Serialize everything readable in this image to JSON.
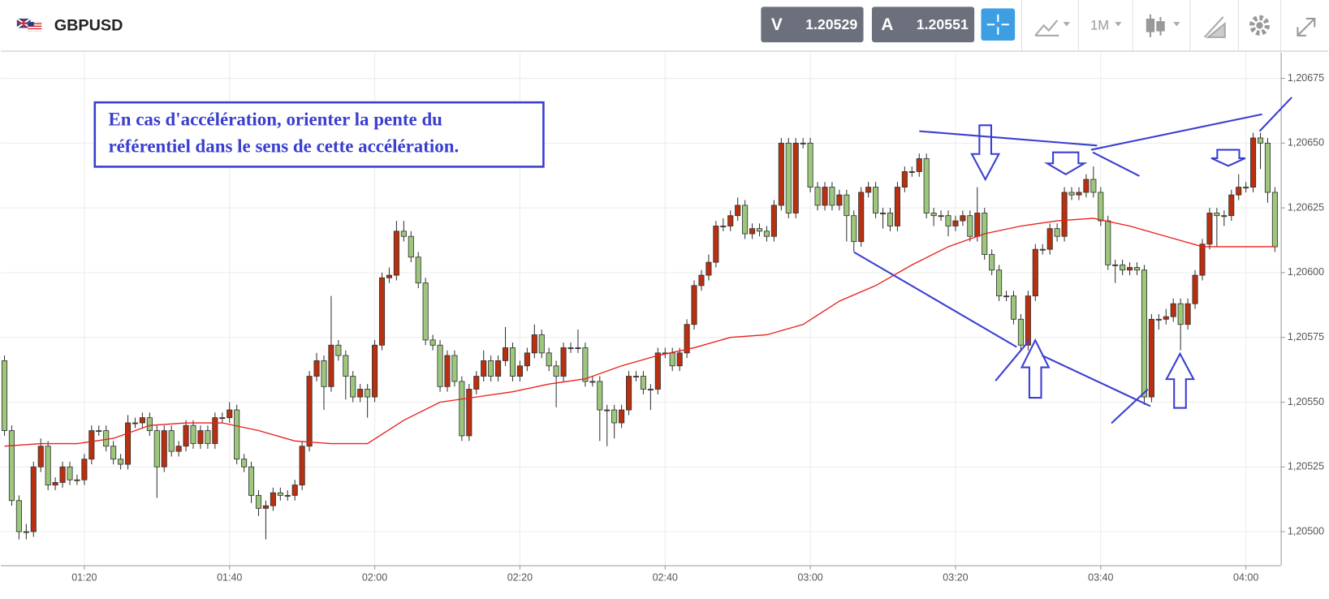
{
  "header": {
    "symbol": "GBPUSD",
    "bid_label": "V",
    "bid": "1.20529",
    "ask_label": "A",
    "ask": "1.20551",
    "timeframe": "1M"
  },
  "chart_data": {
    "type": "candlestick",
    "annotation": [
      "En cas d'accélération, orienter la pente du",
      "référentiel dans le sens de cette accélération."
    ],
    "up_color": "#b8300f",
    "down_color": "#9cc77c",
    "grid": true,
    "ylim": [
      1.20487,
      1.20685
    ],
    "yticks": [
      {
        "value": 1.205,
        "label": "1,20500"
      },
      {
        "value": 1.20525,
        "label": "1,20525"
      },
      {
        "value": 1.2055,
        "label": "1,20550"
      },
      {
        "value": 1.20575,
        "label": "1,20575"
      },
      {
        "value": 1.206,
        "label": "1,20600"
      },
      {
        "value": 1.20625,
        "label": "1,20625"
      },
      {
        "value": 1.2065,
        "label": "1,20650"
      },
      {
        "value": 1.20675,
        "label": "1,20675"
      }
    ],
    "xlim": [
      -0.5,
      175.8
    ],
    "xticks": [
      {
        "value": 11,
        "label": "01:20"
      },
      {
        "value": 31,
        "label": "01:40"
      },
      {
        "value": 51,
        "label": "02:00"
      },
      {
        "value": 71,
        "label": "02:20"
      },
      {
        "value": 91,
        "label": "02:40"
      },
      {
        "value": 111,
        "label": "03:00"
      },
      {
        "value": 131,
        "label": "03:20"
      },
      {
        "value": 151,
        "label": "03:40"
      },
      {
        "value": 171,
        "label": "04:00"
      }
    ],
    "candles": [
      [
        1.20566,
        1.20568,
        1.20537,
        1.20539
      ],
      [
        1.20539,
        1.20541,
        1.2051,
        1.20512
      ],
      [
        1.20512,
        1.20514,
        1.20497,
        1.205
      ],
      [
        1.205,
        1.20503,
        1.20497,
        1.205
      ],
      [
        1.205,
        1.20527,
        1.20498,
        1.20525
      ],
      [
        1.20525,
        1.20536,
        1.20523,
        1.20533
      ],
      [
        1.20533,
        1.20535,
        1.20516,
        1.20518
      ],
      [
        1.20518,
        1.20521,
        1.20516,
        1.20519
      ],
      [
        1.20519,
        1.20527,
        1.20517,
        1.20525
      ],
      [
        1.20525,
        1.20527,
        1.20518,
        1.2052
      ],
      [
        1.2052,
        1.20522,
        1.20518,
        1.2052
      ],
      [
        1.2052,
        1.2053,
        1.20518,
        1.20528
      ],
      [
        1.20528,
        1.20541,
        1.20526,
        1.20539
      ],
      [
        1.20539,
        1.20541,
        1.20537,
        1.20539
      ],
      [
        1.20539,
        1.20541,
        1.20531,
        1.20533
      ],
      [
        1.20533,
        1.20535,
        1.20526,
        1.20528
      ],
      [
        1.20528,
        1.2053,
        1.20524,
        1.20526
      ],
      [
        1.20526,
        1.20545,
        1.20524,
        1.20542
      ],
      [
        1.20542,
        1.20544,
        1.2054,
        1.20542
      ],
      [
        1.20542,
        1.20546,
        1.2054,
        1.20544
      ],
      [
        1.20544,
        1.20546,
        1.20537,
        1.20539
      ],
      [
        1.20539,
        1.20541,
        1.20513,
        1.20525
      ],
      [
        1.20525,
        1.20541,
        1.20523,
        1.20539
      ],
      [
        1.20539,
        1.20541,
        1.20529,
        1.20531
      ],
      [
        1.20531,
        1.20535,
        1.20529,
        1.20533
      ],
      [
        1.20533,
        1.20543,
        1.20531,
        1.20541
      ],
      [
        1.20541,
        1.20543,
        1.20532,
        1.20534
      ],
      [
        1.20534,
        1.20541,
        1.20532,
        1.20539
      ],
      [
        1.20539,
        1.20541,
        1.20532,
        1.20534
      ],
      [
        1.20534,
        1.20546,
        1.20532,
        1.20544
      ],
      [
        1.20544,
        1.20546,
        1.20542,
        1.20544
      ],
      [
        1.20544,
        1.2055,
        1.20542,
        1.20547
      ],
      [
        1.20547,
        1.20549,
        1.20526,
        1.20528
      ],
      [
        1.20528,
        1.2053,
        1.20523,
        1.20525
      ],
      [
        1.20525,
        1.20527,
        1.20511,
        1.20514
      ],
      [
        1.20514,
        1.20516,
        1.20506,
        1.20509
      ],
      [
        1.20509,
        1.20512,
        1.20497,
        1.2051
      ],
      [
        1.2051,
        1.20517,
        1.20508,
        1.20515
      ],
      [
        1.20515,
        1.20517,
        1.20512,
        1.20514
      ],
      [
        1.20514,
        1.20516,
        1.20512,
        1.20514
      ],
      [
        1.20514,
        1.2052,
        1.20512,
        1.20518
      ],
      [
        1.20518,
        1.20535,
        1.20516,
        1.20533
      ],
      [
        1.20533,
        1.20562,
        1.20531,
        1.2056
      ],
      [
        1.2056,
        1.20569,
        1.20558,
        1.20566
      ],
      [
        1.20566,
        1.20568,
        1.20547,
        1.20556
      ],
      [
        1.20556,
        1.20591,
        1.20554,
        1.20572
      ],
      [
        1.20572,
        1.20574,
        1.20566,
        1.20568
      ],
      [
        1.20568,
        1.2057,
        1.20551,
        1.2056
      ],
      [
        1.2056,
        1.20562,
        1.2055,
        1.20552
      ],
      [
        1.20552,
        1.20557,
        1.2055,
        1.20555
      ],
      [
        1.20555,
        1.20557,
        1.20544,
        1.20552
      ],
      [
        1.20552,
        1.20574,
        1.2055,
        1.20572
      ],
      [
        1.20572,
        1.206,
        1.2057,
        1.20598
      ],
      [
        1.20598,
        1.20602,
        1.20596,
        1.20599
      ],
      [
        1.20599,
        1.2062,
        1.20597,
        1.20616
      ],
      [
        1.20616,
        1.2062,
        1.20612,
        1.20614
      ],
      [
        1.20614,
        1.20616,
        1.20604,
        1.20606
      ],
      [
        1.20606,
        1.20608,
        1.20594,
        1.20596
      ],
      [
        1.20596,
        1.20598,
        1.20572,
        1.20574
      ],
      [
        1.20574,
        1.20576,
        1.2057,
        1.20572
      ],
      [
        1.20572,
        1.20574,
        1.20554,
        1.20556
      ],
      [
        1.20556,
        1.2057,
        1.20554,
        1.20568
      ],
      [
        1.20568,
        1.2057,
        1.20556,
        1.20558
      ],
      [
        1.20558,
        1.2056,
        1.20535,
        1.20537
      ],
      [
        1.20537,
        1.20557,
        1.20535,
        1.20555
      ],
      [
        1.20555,
        1.20562,
        1.20553,
        1.2056
      ],
      [
        1.2056,
        1.2057,
        1.20558,
        1.20566
      ],
      [
        1.20566,
        1.20568,
        1.20558,
        1.2056
      ],
      [
        1.2056,
        1.20568,
        1.20558,
        1.20566
      ],
      [
        1.20566,
        1.20579,
        1.20564,
        1.20571
      ],
      [
        1.20571,
        1.20573,
        1.20558,
        1.2056
      ],
      [
        1.2056,
        1.20566,
        1.20558,
        1.20564
      ],
      [
        1.20564,
        1.20571,
        1.20562,
        1.20569
      ],
      [
        1.20569,
        1.2058,
        1.20567,
        1.20576
      ],
      [
        1.20576,
        1.20578,
        1.20567,
        1.20569
      ],
      [
        1.20569,
        1.20571,
        1.20562,
        1.20564
      ],
      [
        1.20564,
        1.20566,
        1.20548,
        1.2056
      ],
      [
        1.2056,
        1.20573,
        1.20558,
        1.20571
      ],
      [
        1.20571,
        1.20573,
        1.20569,
        1.20571
      ],
      [
        1.20571,
        1.20578,
        1.20569,
        1.20571
      ],
      [
        1.20571,
        1.20573,
        1.20556,
        1.20558
      ],
      [
        1.20558,
        1.2056,
        1.20556,
        1.20558
      ],
      [
        1.20558,
        1.2056,
        1.20535,
        1.20547
      ],
      [
        1.20547,
        1.20549,
        1.20533,
        1.20547
      ],
      [
        1.20547,
        1.20549,
        1.20536,
        1.20542
      ],
      [
        1.20542,
        1.20549,
        1.2054,
        1.20547
      ],
      [
        1.20547,
        1.20562,
        1.20545,
        1.2056
      ],
      [
        1.2056,
        1.20562,
        1.20558,
        1.2056
      ],
      [
        1.2056,
        1.20562,
        1.20553,
        1.20555
      ],
      [
        1.20555,
        1.20557,
        1.20547,
        1.20555
      ],
      [
        1.20555,
        1.20571,
        1.20553,
        1.20569
      ],
      [
        1.20569,
        1.20571,
        1.20567,
        1.20569
      ],
      [
        1.20569,
        1.20571,
        1.20562,
        1.20564
      ],
      [
        1.20564,
        1.20571,
        1.20562,
        1.20569
      ],
      [
        1.20569,
        1.20582,
        1.20567,
        1.2058
      ],
      [
        1.2058,
        1.20597,
        1.20578,
        1.20595
      ],
      [
        1.20595,
        1.20601,
        1.20593,
        1.20599
      ],
      [
        1.20599,
        1.20607,
        1.20597,
        1.20604
      ],
      [
        1.20604,
        1.2062,
        1.20602,
        1.20618
      ],
      [
        1.20618,
        1.20621,
        1.20616,
        1.20618
      ],
      [
        1.20618,
        1.20624,
        1.20616,
        1.20622
      ],
      [
        1.20622,
        1.20629,
        1.2062,
        1.20626
      ],
      [
        1.20626,
        1.20628,
        1.20613,
        1.20615
      ],
      [
        1.20615,
        1.20619,
        1.20613,
        1.20617
      ],
      [
        1.20617,
        1.20619,
        1.20614,
        1.20616
      ],
      [
        1.20616,
        1.20618,
        1.20612,
        1.20614
      ],
      [
        1.20614,
        1.20628,
        1.20612,
        1.20626
      ],
      [
        1.20626,
        1.20652,
        1.20624,
        1.2065
      ],
      [
        1.2065,
        1.20652,
        1.20621,
        1.20623
      ],
      [
        1.20623,
        1.20652,
        1.20621,
        1.2065
      ],
      [
        1.2065,
        1.20652,
        1.20648,
        1.2065
      ],
      [
        1.2065,
        1.20652,
        1.20631,
        1.20633
      ],
      [
        1.20633,
        1.20635,
        1.20624,
        1.20626
      ],
      [
        1.20626,
        1.20635,
        1.20624,
        1.20633
      ],
      [
        1.20633,
        1.20635,
        1.20624,
        1.20626
      ],
      [
        1.20626,
        1.20632,
        1.20624,
        1.2063
      ],
      [
        1.2063,
        1.20632,
        1.20612,
        1.20622
      ],
      [
        1.20622,
        1.20624,
        1.20608,
        1.20612
      ],
      [
        1.20612,
        1.20633,
        1.2061,
        1.20631
      ],
      [
        1.20631,
        1.20635,
        1.20629,
        1.20633
      ],
      [
        1.20633,
        1.20635,
        1.20621,
        1.20623
      ],
      [
        1.20623,
        1.20625,
        1.20617,
        1.20623
      ],
      [
        1.20623,
        1.20625,
        1.20616,
        1.20618
      ],
      [
        1.20618,
        1.20635,
        1.20616,
        1.20633
      ],
      [
        1.20633,
        1.20641,
        1.20631,
        1.20639
      ],
      [
        1.20639,
        1.20641,
        1.20637,
        1.20639
      ],
      [
        1.20639,
        1.20646,
        1.20637,
        1.20644
      ],
      [
        1.20644,
        1.20646,
        1.20621,
        1.20623
      ],
      [
        1.20623,
        1.20625,
        1.20618,
        1.20622
      ],
      [
        1.20622,
        1.20624,
        1.2062,
        1.20622
      ],
      [
        1.20622,
        1.20624,
        1.20614,
        1.20618
      ],
      [
        1.20618,
        1.20622,
        1.20616,
        1.2062
      ],
      [
        1.2062,
        1.20624,
        1.20618,
        1.20622
      ],
      [
        1.20622,
        1.20624,
        1.20612,
        1.20614
      ],
      [
        1.20614,
        1.20633,
        1.20612,
        1.20623
      ],
      [
        1.20623,
        1.20625,
        1.20605,
        1.20607
      ],
      [
        1.20607,
        1.20609,
        1.20599,
        1.20601
      ],
      [
        1.20601,
        1.20603,
        1.20589,
        1.20591
      ],
      [
        1.20591,
        1.20593,
        1.20589,
        1.20591
      ],
      [
        1.20591,
        1.20593,
        1.2058,
        1.20582
      ],
      [
        1.20582,
        1.20584,
        1.2057,
        1.20572
      ],
      [
        1.20572,
        1.20593,
        1.2057,
        1.20591
      ],
      [
        1.20591,
        1.20611,
        1.20589,
        1.20609
      ],
      [
        1.20609,
        1.20611,
        1.20607,
        1.20609
      ],
      [
        1.20609,
        1.20619,
        1.20607,
        1.20617
      ],
      [
        1.20617,
        1.20619,
        1.20612,
        1.20614
      ],
      [
        1.20614,
        1.20633,
        1.20612,
        1.20631
      ],
      [
        1.20631,
        1.20633,
        1.20628,
        1.2063
      ],
      [
        1.2063,
        1.20633,
        1.20628,
        1.20631
      ],
      [
        1.20631,
        1.20638,
        1.20629,
        1.20636
      ],
      [
        1.20636,
        1.20641,
        1.20629,
        1.20631
      ],
      [
        1.20631,
        1.20633,
        1.20618,
        1.2062
      ],
      [
        1.2062,
        1.20622,
        1.20601,
        1.20603
      ],
      [
        1.20603,
        1.20605,
        1.20596,
        1.20603
      ],
      [
        1.20603,
        1.20605,
        1.20599,
        1.20601
      ],
      [
        1.20601,
        1.20604,
        1.20599,
        1.20602
      ],
      [
        1.20602,
        1.20604,
        1.20599,
        1.20601
      ],
      [
        1.20601,
        1.20603,
        1.20549,
        1.20552
      ],
      [
        1.20552,
        1.20584,
        1.2055,
        1.20582
      ],
      [
        1.20582,
        1.20584,
        1.20578,
        1.20582
      ],
      [
        1.20582,
        1.20586,
        1.2058,
        1.20583
      ],
      [
        1.20583,
        1.2059,
        1.20581,
        1.20588
      ],
      [
        1.20588,
        1.2059,
        1.2057,
        1.2058
      ],
      [
        1.2058,
        1.2059,
        1.20578,
        1.20588
      ],
      [
        1.20588,
        1.20601,
        1.20586,
        1.20599
      ],
      [
        1.20599,
        1.20613,
        1.20597,
        1.20611
      ],
      [
        1.20611,
        1.20625,
        1.20609,
        1.20623
      ],
      [
        1.20623,
        1.20625,
        1.2061,
        1.20622
      ],
      [
        1.20622,
        1.20624,
        1.20618,
        1.20622
      ],
      [
        1.20622,
        1.20632,
        1.2062,
        1.2063
      ],
      [
        1.2063,
        1.20638,
        1.20628,
        1.20633
      ],
      [
        1.20633,
        1.20635,
        1.20631,
        1.20633
      ],
      [
        1.20633,
        1.20654,
        1.20631,
        1.20652
      ],
      [
        1.20652,
        1.20654,
        1.2064,
        1.2065
      ],
      [
        1.2065,
        1.20652,
        1.20627,
        1.20631
      ],
      [
        1.20631,
        1.20633,
        1.20608,
        1.2061
      ]
    ],
    "ma": {
      "color": "#e8201c",
      "x": [
        0,
        5,
        10,
        15,
        20,
        25,
        30,
        35,
        40,
        45,
        50,
        55,
        60,
        65,
        70,
        75,
        80,
        85,
        90,
        95,
        100,
        105,
        110,
        115,
        120,
        125,
        130,
        135,
        140,
        145,
        150,
        155,
        160,
        165,
        170,
        175
      ],
      "values": [
        1.20533,
        1.20534,
        1.20534,
        1.20536,
        1.20541,
        1.20542,
        1.20542,
        1.20539,
        1.20535,
        1.20534,
        1.20534,
        1.20543,
        1.2055,
        1.20552,
        1.20554,
        1.20557,
        1.20559,
        1.20564,
        1.20568,
        1.20571,
        1.20575,
        1.20576,
        1.2058,
        1.20589,
        1.20595,
        1.20603,
        1.2061,
        1.20615,
        1.20618,
        1.2062,
        1.20621,
        1.20618,
        1.20614,
        1.2061,
        1.2061,
        1.2061
      ]
    }
  }
}
